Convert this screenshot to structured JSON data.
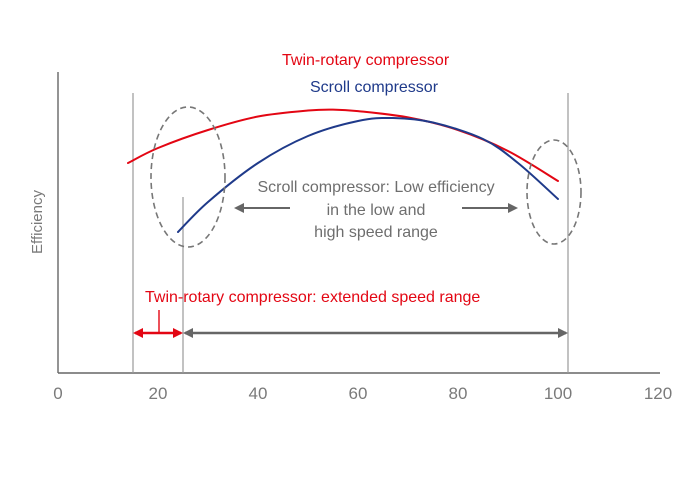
{
  "chart_data": {
    "type": "line",
    "title": "",
    "xlabel": "",
    "ylabel": "Efficiency",
    "xlim": [
      0,
      120
    ],
    "xticks": [
      0,
      20,
      40,
      60,
      80,
      100,
      120
    ],
    "y_tick_labels": false,
    "grid": false,
    "legend_placement": "top",
    "series": [
      {
        "name": "Twin-rotary compressor",
        "color": "#e30613",
        "x": [
          14,
          20,
          30,
          40,
          50,
          55,
          60,
          70,
          80,
          90,
          100
        ],
        "y": [
          0.7,
          0.75,
          0.81,
          0.855,
          0.875,
          0.878,
          0.873,
          0.852,
          0.81,
          0.74,
          0.64
        ]
      },
      {
        "name": "Scroll compressor",
        "color": "#1f3a8a",
        "x": [
          24,
          30,
          40,
          50,
          60,
          67,
          75,
          85,
          92,
          100
        ],
        "y": [
          0.47,
          0.57,
          0.7,
          0.79,
          0.84,
          0.85,
          0.835,
          0.78,
          0.7,
          0.58
        ]
      }
    ],
    "reference_lines_x": [
      15,
      25,
      102
    ],
    "annotations": {
      "scroll_low_efficiency": [
        "Scroll compressor: Low efficiency",
        "in the low and",
        "high speed range"
      ],
      "extended_range": "Twin-rotary compressor: extended speed range"
    },
    "ranges": {
      "twin_rotary_extension": [
        15,
        25
      ],
      "scroll_range": [
        25,
        102
      ]
    },
    "colors": {
      "axis": "#666666",
      "refline": "#999999",
      "arrow_gray": "#666666",
      "arrow_red": "#e30613",
      "ellipse": "#777777",
      "twin": "#e30613",
      "scroll": "#1f3a8a"
    }
  }
}
